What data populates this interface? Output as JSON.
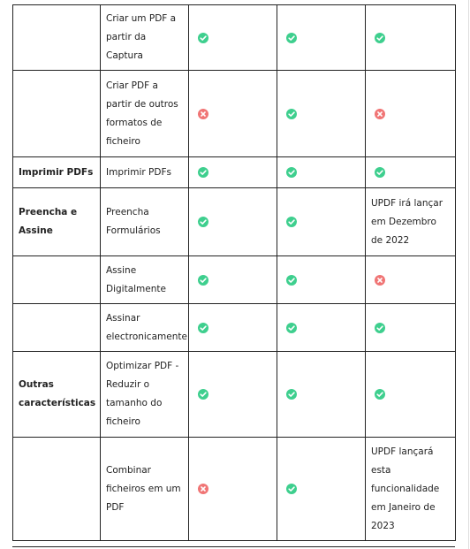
{
  "table": {
    "rows": [
      {
        "feature": "Criar um PDF a partir da Captura"
      },
      {
        "feature": "Criar PDF a partir de outros formatos de ficheiro"
      },
      {
        "category": "Imprimir PDFs",
        "feature": "Imprimir PDFs"
      },
      {
        "category": "Preencha e Assine",
        "feature": "Preencha Formulários",
        "note": "UPDF irá lançar em Dezembro de 2022"
      },
      {
        "feature": "Assine Digitalmente"
      },
      {
        "feature": "Assinar electronicamente"
      },
      {
        "category": "Outras características",
        "feature": "Optimizar PDF - Reduzir o tamanho do ficheiro"
      },
      {
        "feature": "Combinar ficheiros em um PDF",
        "note": "UPDF lançará esta funcionalidade em Janeiro de 2023"
      }
    ]
  }
}
